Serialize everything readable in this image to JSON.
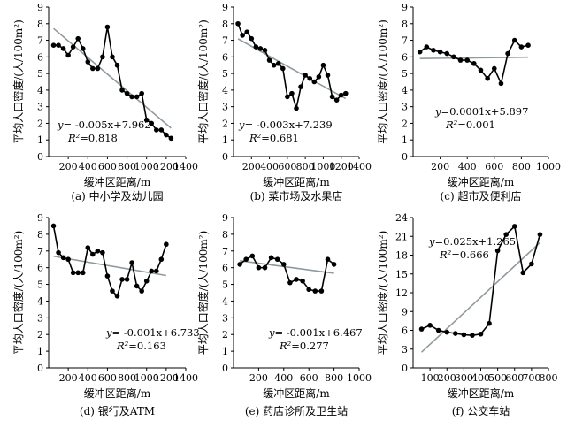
{
  "chart_data": [
    {
      "type": "line",
      "caption": "(a) 中小学及幼儿园",
      "xlabel": "缓冲区距离/m",
      "ylabel": "平均人口密度/(人/100m²)",
      "xlim": [
        0,
        1400
      ],
      "xticks": [
        200,
        400,
        600,
        800,
        1000,
        1200,
        1400
      ],
      "ylim": [
        0,
        9
      ],
      "yticks": [
        0,
        1,
        2,
        3,
        4,
        5,
        6,
        7,
        8,
        9
      ],
      "x": [
        50,
        100,
        150,
        200,
        250,
        300,
        350,
        400,
        450,
        500,
        550,
        600,
        650,
        700,
        750,
        800,
        850,
        900,
        950,
        1000,
        1050,
        1100,
        1150,
        1200,
        1250
      ],
      "values": [
        6.7,
        6.7,
        6.5,
        6.1,
        6.6,
        7.1,
        6.5,
        5.7,
        5.3,
        5.3,
        6.0,
        7.8,
        6.0,
        5.5,
        4.0,
        3.8,
        3.6,
        3.6,
        3.8,
        2.2,
        2.0,
        1.6,
        1.6,
        1.3,
        1.1
      ],
      "trend": {
        "slope": -0.005,
        "intercept": 7.962
      },
      "equation": {
        "lhs": "y",
        "rhs": "= -0.005x+7.962",
        "r2_label": "R²",
        "r2_value": "=0.818"
      }
    },
    {
      "type": "line",
      "caption": "(b) 菜市场及水果店",
      "xlabel": "缓冲区距离/m",
      "ylabel": "平均人口密度/(人/100m²)",
      "xlim": [
        0,
        1400
      ],
      "xticks": [
        200,
        400,
        600,
        800,
        1000,
        1200,
        1400
      ],
      "ylim": [
        0,
        9
      ],
      "yticks": [
        0,
        1,
        2,
        3,
        4,
        5,
        6,
        7,
        8,
        9
      ],
      "x": [
        50,
        100,
        150,
        200,
        250,
        300,
        350,
        400,
        450,
        500,
        550,
        600,
        650,
        700,
        750,
        800,
        850,
        900,
        950,
        1000,
        1050,
        1100,
        1150,
        1200,
        1250
      ],
      "values": [
        8.0,
        7.3,
        7.5,
        7.1,
        6.6,
        6.5,
        6.4,
        5.8,
        5.5,
        5.6,
        5.3,
        3.6,
        3.8,
        2.9,
        4.2,
        4.9,
        4.7,
        4.5,
        4.8,
        5.5,
        4.9,
        3.6,
        3.4,
        3.7,
        3.8
      ],
      "trend": {
        "slope": -0.003,
        "intercept": 7.239
      },
      "equation": {
        "lhs": "y",
        "rhs": "= -0.003x+7.239",
        "r2_label": "R²",
        "r2_value": "=0.681"
      }
    },
    {
      "type": "line",
      "caption": "(c) 超市及便利店",
      "xlabel": "缓冲区距离/m",
      "ylabel": "平均人口密度/(人/100m²)",
      "xlim": [
        0,
        1000
      ],
      "xticks": [
        200,
        400,
        600,
        800,
        1000
      ],
      "ylim": [
        0,
        9
      ],
      "yticks": [
        0,
        1,
        2,
        3,
        4,
        5,
        6,
        7,
        8,
        9
      ],
      "x": [
        50,
        100,
        150,
        200,
        250,
        300,
        350,
        400,
        450,
        500,
        550,
        600,
        650,
        700,
        750,
        800,
        850
      ],
      "values": [
        6.3,
        6.6,
        6.4,
        6.3,
        6.2,
        6.0,
        5.8,
        5.8,
        5.6,
        5.2,
        4.7,
        5.3,
        4.4,
        6.2,
        7.0,
        6.6,
        6.7
      ],
      "trend": {
        "slope": 0.0001,
        "intercept": 5.897
      },
      "equation": {
        "lhs": "y",
        "rhs": "=0.0001x+5.897",
        "r2_label": "R²",
        "r2_value": "=0.001"
      }
    },
    {
      "type": "line",
      "caption": "(d) 银行及ATM",
      "xlabel": "缓冲区距离/m",
      "ylabel": "平均人口密度/(人/100m²)",
      "xlim": [
        0,
        1400
      ],
      "xticks": [
        200,
        400,
        600,
        800,
        1000,
        1200,
        1400
      ],
      "ylim": [
        0,
        9
      ],
      "yticks": [
        0,
        1,
        2,
        3,
        4,
        5,
        6,
        7,
        8,
        9
      ],
      "x": [
        50,
        100,
        150,
        200,
        250,
        300,
        350,
        400,
        450,
        500,
        550,
        600,
        650,
        700,
        750,
        800,
        850,
        900,
        950,
        1000,
        1050,
        1100,
        1150,
        1200
      ],
      "values": [
        8.5,
        6.9,
        6.6,
        6.5,
        5.7,
        5.7,
        5.7,
        7.2,
        6.8,
        7.0,
        6.9,
        5.5,
        4.6,
        4.3,
        5.3,
        5.3,
        6.3,
        4.9,
        4.6,
        5.2,
        5.8,
        5.8,
        6.5,
        7.4
      ],
      "trend": {
        "slope": -0.001,
        "intercept": 6.733
      },
      "equation": {
        "lhs": "y",
        "rhs": "= -0.001x+6.733",
        "r2_label": "R²",
        "r2_value": "=0.163"
      }
    },
    {
      "type": "line",
      "caption": "(e) 药店诊所及卫生站",
      "xlabel": "缓冲区距离/m",
      "ylabel": "平均人口密度/(人/100m²)",
      "xlim": [
        0,
        1000
      ],
      "xticks": [
        200,
        400,
        600,
        800,
        1000
      ],
      "ylim": [
        0,
        9
      ],
      "yticks": [
        0,
        1,
        2,
        3,
        4,
        5,
        6,
        7,
        8,
        9
      ],
      "x": [
        50,
        100,
        150,
        200,
        250,
        300,
        350,
        400,
        450,
        500,
        550,
        600,
        650,
        700,
        750,
        800
      ],
      "values": [
        6.2,
        6.5,
        6.7,
        6.0,
        6.0,
        6.6,
        6.5,
        6.2,
        5.1,
        5.3,
        5.2,
        4.7,
        4.6,
        4.6,
        6.5,
        6.2
      ],
      "trend": {
        "slope": -0.001,
        "intercept": 6.467
      },
      "equation": {
        "lhs": "y",
        "rhs": "= -0.001x+6.467",
        "r2_label": "R²",
        "r2_value": "=0.277"
      }
    },
    {
      "type": "line",
      "caption": "(f) 公交车站",
      "xlabel": "缓冲区距离/m",
      "ylabel": "平均人口密度/(人/100m²)",
      "xlim": [
        0,
        800
      ],
      "xticks": [
        100,
        200,
        300,
        400,
        500,
        600,
        700,
        800
      ],
      "ylim": [
        0,
        24
      ],
      "yticks": [
        0,
        3,
        6,
        9,
        12,
        15,
        18,
        21,
        24
      ],
      "x": [
        50,
        100,
        150,
        200,
        250,
        300,
        350,
        400,
        450,
        500,
        550,
        600,
        650,
        700,
        750
      ],
      "values": [
        6.2,
        6.8,
        6.0,
        5.7,
        5.5,
        5.3,
        5.2,
        5.4,
        7.1,
        18.7,
        21.3,
        22.6,
        15.2,
        16.6,
        21.3
      ],
      "trend": {
        "slope": 0.025,
        "intercept": 1.265
      },
      "equation": {
        "lhs": "y",
        "rhs": "=0.025x+1.265",
        "r2_label": "R²",
        "r2_value": "=0.666"
      }
    }
  ],
  "style": {
    "line_color": "#000000",
    "trend_color": "#8f9a9f",
    "marker_color": "#000000"
  }
}
